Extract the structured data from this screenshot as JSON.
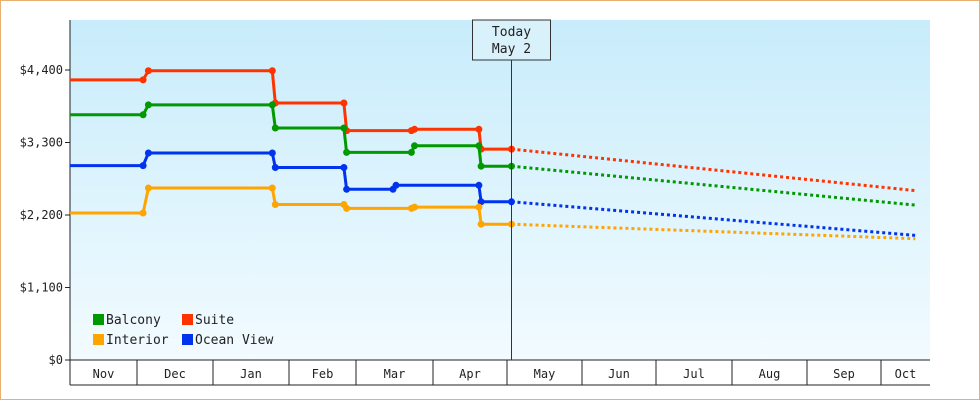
{
  "chart_data": {
    "type": "line",
    "y_tick_labels": [
      "$0",
      "$1,100",
      "$2,200",
      "$3,300",
      "$4,400"
    ],
    "ylim": [
      0,
      4400
    ],
    "month_labels": [
      "Nov",
      "Dec",
      "Jan",
      "Feb",
      "Mar",
      "Apr",
      "May",
      "Jun",
      "Jul",
      "Aug",
      "Sep",
      "Oct"
    ],
    "today": {
      "line1": "Today",
      "line2": "May 2",
      "x": 6.06
    },
    "legend": {
      "placement": "bottom-left"
    },
    "series": [
      {
        "name": "Suite",
        "color": "#ff3300",
        "points": [
          [
            0,
            4250
          ],
          [
            1.08,
            4250
          ],
          [
            1.15,
            4390
          ],
          [
            2.78,
            4390
          ],
          [
            2.82,
            3900
          ],
          [
            3.82,
            3900
          ],
          [
            3.86,
            3480
          ],
          [
            4.72,
            3480
          ],
          [
            4.76,
            3500
          ],
          [
            5.62,
            3500
          ],
          [
            5.65,
            3200
          ],
          [
            6.06,
            3200
          ]
        ],
        "forecast": [
          [
            6.06,
            3200
          ],
          [
            11.7,
            2570
          ]
        ]
      },
      {
        "name": "Balcony",
        "color": "#009900",
        "points": [
          [
            0,
            3720
          ],
          [
            1.08,
            3720
          ],
          [
            1.15,
            3870
          ],
          [
            2.78,
            3870
          ],
          [
            2.82,
            3520
          ],
          [
            3.82,
            3520
          ],
          [
            3.86,
            3150
          ],
          [
            4.72,
            3150
          ],
          [
            4.76,
            3250
          ],
          [
            5.62,
            3250
          ],
          [
            5.65,
            2940
          ],
          [
            6.06,
            2940
          ]
        ],
        "forecast": [
          [
            6.06,
            2940
          ],
          [
            11.7,
            2350
          ]
        ]
      },
      {
        "name": "Ocean View",
        "color": "#0033ee",
        "points": [
          [
            0,
            2950
          ],
          [
            1.08,
            2950
          ],
          [
            1.15,
            3140
          ],
          [
            2.78,
            3140
          ],
          [
            2.82,
            2920
          ],
          [
            3.82,
            2920
          ],
          [
            3.86,
            2590
          ],
          [
            4.48,
            2590
          ],
          [
            4.52,
            2650
          ],
          [
            5.62,
            2650
          ],
          [
            5.65,
            2400
          ],
          [
            6.06,
            2400
          ]
        ],
        "forecast": [
          [
            6.06,
            2400
          ],
          [
            11.7,
            1890
          ]
        ]
      },
      {
        "name": "Interior",
        "color": "#ffa500",
        "points": [
          [
            0,
            2230
          ],
          [
            1.08,
            2230
          ],
          [
            1.15,
            2610
          ],
          [
            2.78,
            2610
          ],
          [
            2.82,
            2360
          ],
          [
            3.82,
            2360
          ],
          [
            3.86,
            2300
          ],
          [
            4.72,
            2300
          ],
          [
            4.76,
            2320
          ],
          [
            5.62,
            2320
          ],
          [
            5.65,
            2060
          ],
          [
            6.06,
            2060
          ]
        ],
        "forecast": [
          [
            6.06,
            2060
          ],
          [
            11.7,
            1840
          ]
        ]
      }
    ],
    "legend_order": [
      "Balcony",
      "Suite",
      "Interior",
      "Ocean View"
    ]
  }
}
